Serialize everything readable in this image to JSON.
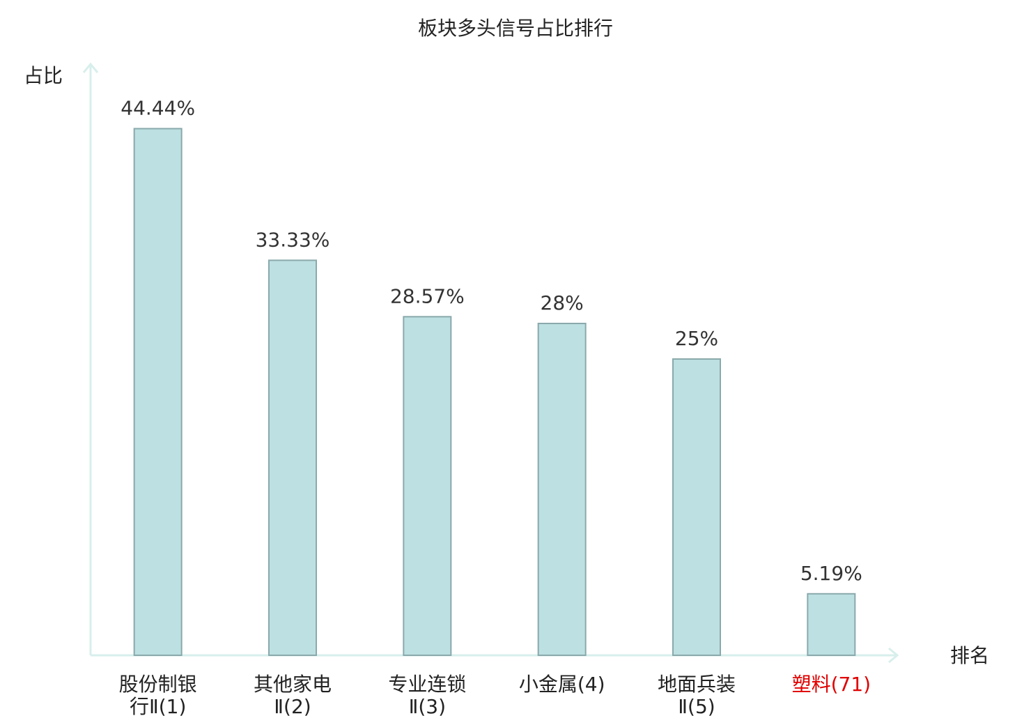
{
  "chart_data": {
    "type": "bar",
    "title": "板块多头信号占比排行",
    "y_axis_label": "占比",
    "x_axis_label": "排名",
    "categories": [
      "股份制银行Ⅱ(1)",
      "其他家电Ⅱ(2)",
      "专业连锁Ⅱ(3)",
      "小金属(4)",
      "地面兵装Ⅱ(5)",
      "塑料(71)"
    ],
    "category_colors": [
      "#222222",
      "#222222",
      "#222222",
      "#222222",
      "#222222",
      "#e00000"
    ],
    "values": [
      44.44,
      33.33,
      28.57,
      28,
      25,
      5.19
    ],
    "value_labels": [
      "44.44%",
      "33.33%",
      "28.57%",
      "28%",
      "25%",
      "5.19%"
    ],
    "color": "#bde0e2",
    "edge_color": "#8aa9ab",
    "ylim": [
      0,
      50
    ]
  }
}
